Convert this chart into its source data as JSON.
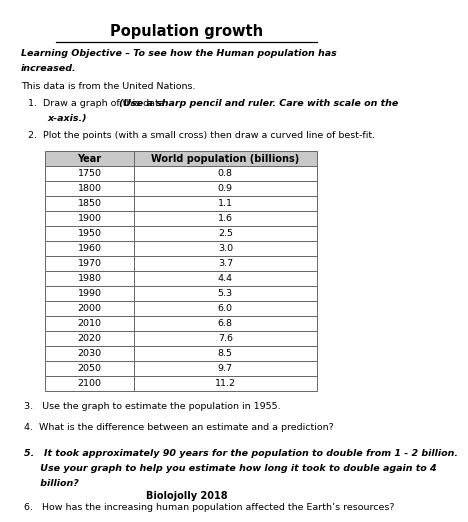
{
  "title": "Population growth",
  "lo_line1": "Learning Objective – To see how the Human population has",
  "lo_line2": "increased.",
  "source": "This data is from the United Nations.",
  "instr1_normal": "1.  Draw a graph of this data. ",
  "instr1_italic": "(Use a sharp pencil and ruler. Care with scale on the",
  "instr1_italic2": "x-axis.)",
  "instr2": "2.  Plot the points (with a small cross) then draw a curved line of best-fit.",
  "col1_header": "Year",
  "col2_header": "World population (billions)",
  "table_data": [
    [
      "1750",
      "0.8"
    ],
    [
      "1800",
      "0.9"
    ],
    [
      "1850",
      "1.1"
    ],
    [
      "1900",
      "1.6"
    ],
    [
      "1950",
      "2.5"
    ],
    [
      "1960",
      "3.0"
    ],
    [
      "1970",
      "3.7"
    ],
    [
      "1980",
      "4.4"
    ],
    [
      "1990",
      "5.3"
    ],
    [
      "2000",
      "6.0"
    ],
    [
      "2010",
      "6.8"
    ],
    [
      "2020",
      "7.6"
    ],
    [
      "2030",
      "8.5"
    ],
    [
      "2050",
      "9.7"
    ],
    [
      "2100",
      "11.2"
    ]
  ],
  "q3": "3.   Use the graph to estimate the population in 1955.",
  "q4": "4.  What is the difference between an estimate and a prediction?",
  "q5a": "5.   It took approximately 90 years for the population to double from 1 - 2 billion.",
  "q5b": "     Use your graph to help you estimate how long it took to double again to 4",
  "q5c": "     billion?",
  "q6": "6.   How has the increasing human population affected the Earth’s resources?",
  "footer": "Biolojolly 2018",
  "bg_color": "#ffffff",
  "text_color": "#000000",
  "border_color": "#666666",
  "header_bg": "#c8c8c8"
}
